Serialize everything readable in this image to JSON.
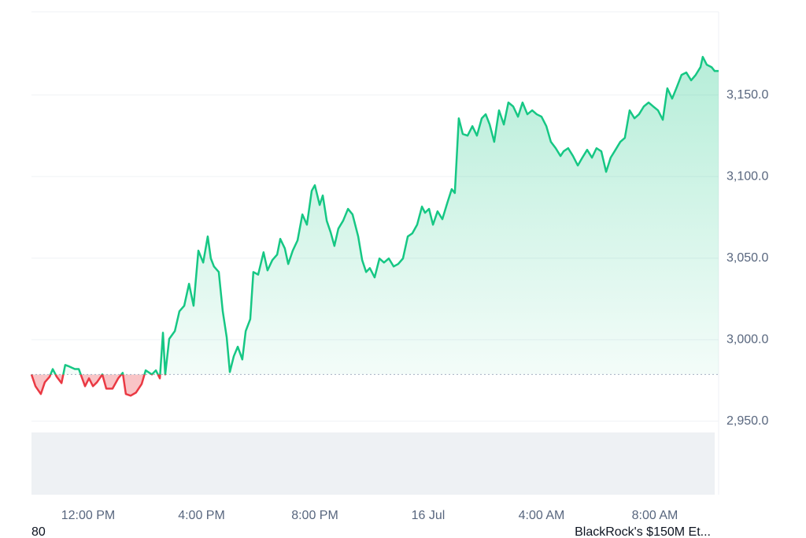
{
  "chart_data": {
    "type": "line",
    "x": [
      0,
      0.14,
      0.33,
      0.47,
      0.64,
      0.75,
      0.89,
      1.06,
      1.19,
      1.33,
      1.53,
      1.67,
      1.89,
      2.03,
      2.17,
      2.31,
      2.5,
      2.64,
      2.86,
      3.06,
      3.22,
      3.33,
      3.5,
      3.69,
      3.89,
      4.03,
      4.25,
      4.39,
      4.53,
      4.64,
      4.72,
      4.86,
      5.06,
      5.22,
      5.39,
      5.56,
      5.72,
      5.89,
      6.06,
      6.22,
      6.33,
      6.44,
      6.61,
      6.75,
      6.89,
      7,
      7.14,
      7.28,
      7.44,
      7.56,
      7.72,
      7.83,
      8,
      8.19,
      8.33,
      8.5,
      8.67,
      8.78,
      8.94,
      9.06,
      9.22,
      9.39,
      9.56,
      9.72,
      9.89,
      10,
      10.17,
      10.28,
      10.42,
      10.56,
      10.69,
      10.83,
      11,
      11.17,
      11.33,
      11.53,
      11.67,
      11.81,
      11.94,
      12.11,
      12.28,
      12.44,
      12.61,
      12.78,
      12.94,
      13.11,
      13.28,
      13.44,
      13.61,
      13.78,
      13.89,
      14.03,
      14.17,
      14.33,
      14.5,
      14.67,
      14.83,
      14.94,
      15.08,
      15.22,
      15.39,
      15.56,
      15.72,
      15.89,
      16.03,
      16.17,
      16.33,
      16.5,
      16.67,
      16.83,
      17,
      17.17,
      17.33,
      17.5,
      17.67,
      17.83,
      18,
      18.17,
      18.33,
      18.5,
      18.67,
      18.78,
      18.94,
      19.11,
      19.28,
      19.44,
      19.61,
      19.78,
      19.94,
      20.11,
      20.28,
      20.44,
      20.61,
      20.78,
      20.94,
      21.11,
      21.28,
      21.44,
      21.61,
      21.78,
      21.94,
      22.11,
      22.28,
      22.44,
      22.61,
      22.78,
      22.94,
      23.11,
      23.28,
      23.44,
      23.61,
      23.69,
      23.83,
      24,
      24.11,
      24.25
    ],
    "values": [
      2978.7,
      2971.5,
      2966.7,
      2973.9,
      2977.3,
      2982,
      2977.3,
      2973.4,
      2984.5,
      2983.6,
      2982,
      2982,
      2971.5,
      2976.3,
      2971.5,
      2973.9,
      2978.7,
      2970,
      2970,
      2976.3,
      2979.7,
      2966.7,
      2965.7,
      2967.6,
      2972.9,
      2981.2,
      2978.7,
      2981.2,
      2976.3,
      3004.3,
      2978.7,
      3000.5,
      3005.3,
      3017.4,
      3020.8,
      3034.3,
      3020.8,
      3054.6,
      3047.3,
      3063.3,
      3049.8,
      3044.9,
      3041.5,
      3017.4,
      3001.4,
      2980.2,
      2989.9,
      2995.7,
      2987.9,
      3005.3,
      3012.6,
      3041.5,
      3039.9,
      3053.6,
      3042.5,
      3048.8,
      3052.2,
      3061.8,
      3056,
      3046.4,
      3054.6,
      3060.9,
      3076.8,
      3070.5,
      3091.3,
      3094.7,
      3082.6,
      3088.4,
      3072.9,
      3065.7,
      3057.5,
      3068.1,
      3073,
      3080.2,
      3076.8,
      3063.3,
      3048.8,
      3041.5,
      3043.9,
      3038.2,
      3049.8,
      3047.3,
      3049.8,
      3044.9,
      3046.4,
      3049.8,
      3063.3,
      3065.2,
      3070.5,
      3081.6,
      3077.8,
      3080.2,
      3070.5,
      3078.7,
      3073.9,
      3083.6,
      3092.3,
      3089.9,
      3135.7,
      3126.1,
      3125.1,
      3130.9,
      3125.1,
      3135.7,
      3138.2,
      3131.9,
      3121.3,
      3140.6,
      3131.9,
      3145.4,
      3143,
      3136.7,
      3145.4,
      3138.2,
      3140.6,
      3138.2,
      3136.7,
      3130.9,
      3121.3,
      3117.4,
      3112.6,
      3115.5,
      3117.4,
      3112.6,
      3106.8,
      3111.6,
      3116.4,
      3111.6,
      3117.4,
      3115.5,
      3102.9,
      3111.6,
      3116.4,
      3121.3,
      3123.7,
      3140.6,
      3135.7,
      3138.2,
      3143,
      3145.4,
      3143,
      3140.6,
      3134.8,
      3154.1,
      3147.8,
      3155.1,
      3162.3,
      3163.8,
      3159,
      3162.3,
      3167.1,
      3173.4,
      3168.6,
      3167.1,
      3164.7,
      3164.7
    ],
    "baseline": 2978.7,
    "up_color": "#16c784",
    "down_color": "#ea3943",
    "xlim": [
      0,
      24.25
    ],
    "xticks": [
      {
        "value": 2,
        "label": "12:00 PM"
      },
      {
        "value": 6,
        "label": "4:00 PM"
      },
      {
        "value": 10,
        "label": "8:00 PM"
      },
      {
        "value": 14,
        "label": "16 Jul"
      },
      {
        "value": 18,
        "label": "4:00 AM"
      },
      {
        "value": 22,
        "label": "8:00 AM"
      }
    ],
    "ylim": [
      2905,
      3201
    ],
    "yticks": [
      {
        "value": 2950,
        "label": "2,950.0"
      },
      {
        "value": 3000,
        "label": "3,000.0"
      },
      {
        "value": 3050,
        "label": "3,050.0"
      },
      {
        "value": 3100,
        "label": "3,100.0"
      },
      {
        "value": 3150,
        "label": "3,150.0"
      }
    ],
    "grid": true,
    "footer_left": "80",
    "footer_right": "BlackRock's $150M Et..."
  }
}
